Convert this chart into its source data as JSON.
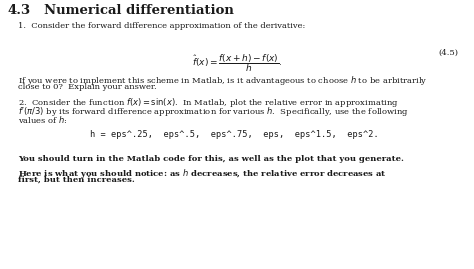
{
  "bg_color": "#ffffff",
  "text_color": "#1a1a1a",
  "section_num": "4.3",
  "section_title": "Numerical differentiation",
  "item1_intro": "1.  Consider the forward difference approximation of the derivative:",
  "formula_latex": "$\\hat{f}(x) = \\dfrac{f(x+h)-f(x)}{h}.$",
  "formula_label": "(4.5)",
  "item1_body1": "If you were to implement this scheme in Matlab, is it advantageous to choose $h$ to be arbitrarily",
  "item1_body2": "close to 0?  Explain your answer.",
  "item2_intro1": "2.  Consider the function $f(x) = \\sin(x)$.  In Matlab, plot the relative error in approximating",
  "item2_intro2": "$f'(\\pi/3)$ by its forward difference approximation for various $h$.  Specifically, use the following",
  "item2_intro3": "values of $h$:",
  "code_line": "h = eps^.25,  eps^.5,  eps^.75,  eps,  eps^1.5,  eps^2.",
  "bold_line1": "You should turn in the Matlab code for this, as well as the plot that you generate.",
  "bold_line2a": "Here is what you should notice: as $h$ decreases, the relative error decreases at",
  "bold_line2b": "first, but then increases.",
  "fs_title": 9.5,
  "fs_body": 6.0,
  "fs_code": 6.2,
  "fs_bold": 6.0
}
